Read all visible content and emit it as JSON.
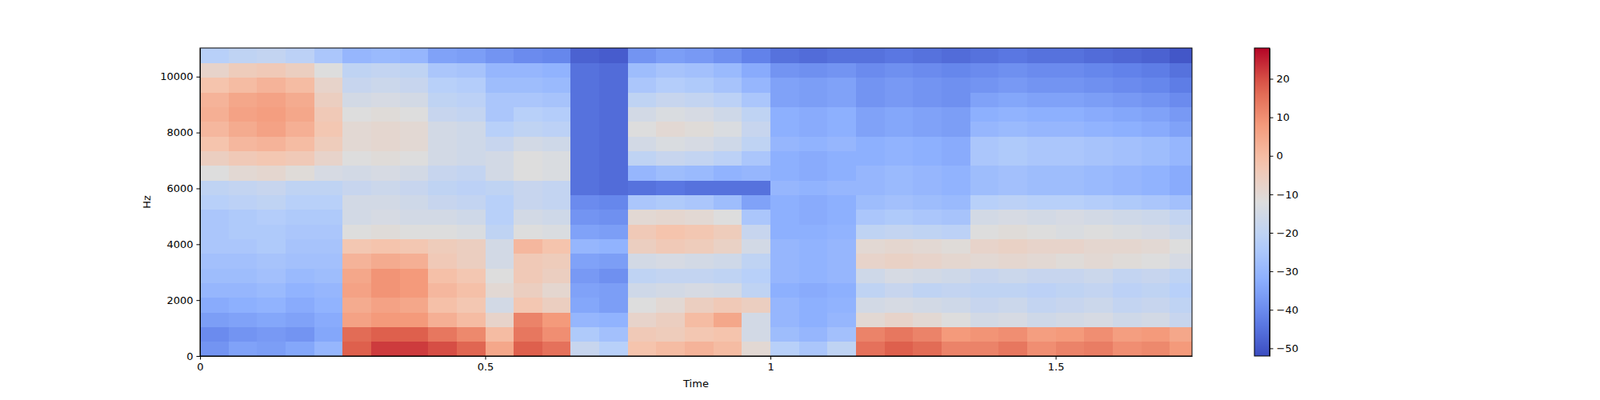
{
  "chart_data": {
    "type": "heatmap",
    "x_label": "Time",
    "y_label": "Hz",
    "x": [
      0,
      0.05,
      0.1,
      0.15,
      0.2,
      0.25,
      0.3,
      0.35,
      0.4,
      0.45,
      0.5,
      0.55,
      0.6,
      0.65,
      0.7,
      0.75,
      0.8,
      0.85,
      0.9,
      0.95,
      1.0,
      1.05,
      1.1,
      1.15,
      1.2,
      1.25,
      1.3,
      1.35,
      1.4,
      1.45,
      1.5,
      1.55,
      1.6,
      1.65,
      1.7,
      1.75
    ],
    "y": [
      0,
      525,
      1050,
      1575,
      2100,
      2625,
      3150,
      3675,
      4200,
      4725,
      5250,
      5775,
      6300,
      6825,
      7350,
      7875,
      8400,
      8925,
      9450,
      9975,
      10500,
      11025
    ],
    "xlim": [
      0,
      1.739
    ],
    "ylim": [
      0,
      11025
    ],
    "xticks": [
      0,
      0.5,
      1,
      1.5
    ],
    "yticks": [
      0,
      2000,
      4000,
      6000,
      8000,
      10000
    ],
    "zlim": [
      -52,
      28
    ],
    "zticks": [
      {
        "value": -50,
        "label": "−50"
      },
      {
        "value": -40,
        "label": "−40"
      },
      {
        "value": -30,
        "label": "−30"
      },
      {
        "value": -20,
        "label": "−20"
      },
      {
        "value": -10,
        "label": "−10"
      },
      0,
      10,
      20
    ],
    "values": [
      [
        -38,
        -35,
        -36,
        -34,
        -30,
        18,
        22,
        22,
        20,
        17,
        5,
        18,
        15,
        -18,
        -22,
        -2,
        0,
        2,
        0,
        -10,
        -22,
        -25,
        -20,
        15,
        18,
        16,
        12,
        12,
        14,
        10,
        12,
        13,
        10,
        11,
        8
      ],
      [
        -40,
        -38,
        -37,
        -38,
        -34,
        16,
        18,
        18,
        14,
        11,
        0,
        14,
        10,
        -24,
        -27,
        -4,
        -5,
        -3,
        -2,
        -15,
        -28,
        -30,
        -27,
        12,
        14,
        12,
        8,
        9,
        10,
        7,
        8,
        10,
        7,
        8,
        5
      ],
      [
        -36,
        -35,
        -34,
        -35,
        -33,
        6,
        8,
        8,
        3,
        0,
        -8,
        12,
        8,
        -30,
        -31,
        -8,
        -6,
        0,
        5,
        -15,
        -30,
        -32,
        -30,
        -10,
        -8,
        -10,
        -12,
        -15,
        -14,
        -16,
        -15,
        -14,
        -16,
        -15,
        -18
      ],
      [
        -33,
        -32,
        -31,
        -33,
        -31,
        4,
        6,
        5,
        -1,
        -3,
        -15,
        -3,
        -6,
        -34,
        -36,
        -12,
        -10,
        -6,
        -4,
        -6,
        -30,
        -32,
        -31,
        -15,
        -14,
        -15,
        -16,
        -18,
        -17,
        -19,
        -18,
        -17,
        -19,
        -18,
        -20
      ],
      [
        -30,
        -30,
        -29,
        -31,
        -30,
        6,
        9,
        8,
        1,
        -1,
        -10,
        -6,
        -9,
        -35,
        -36,
        -16,
        -15,
        -14,
        -15,
        -20,
        -32,
        -33,
        -32,
        -20,
        -18,
        -20,
        -19,
        -20,
        -20,
        -21,
        -20,
        -19,
        -21,
        -20,
        -22
      ],
      [
        -28,
        -28,
        -27,
        -29,
        -28,
        5,
        9,
        8,
        -1,
        -3,
        -12,
        -4,
        -6,
        -37,
        -39,
        -20,
        -19,
        -19,
        -20,
        -22,
        -30,
        -31,
        -30,
        -16,
        -14,
        -15,
        -16,
        -18,
        -17,
        -18,
        -18,
        -17,
        -19,
        -18,
        -20
      ],
      [
        -27,
        -27,
        -26,
        -27,
        -27,
        2,
        4,
        3,
        -4,
        -6,
        -15,
        -4,
        -5,
        -35,
        -36,
        -15,
        -14,
        -15,
        -16,
        -20,
        -30,
        -31,
        -30,
        -8,
        -7,
        -8,
        -9,
        -10,
        -9,
        -10,
        -11,
        -10,
        -11,
        -12,
        -14
      ],
      [
        -25,
        -25,
        -24,
        -26,
        -26,
        -3,
        -2,
        -3,
        -5,
        -6,
        -15,
        1,
        -2,
        -30,
        -31,
        -6,
        -4,
        -5,
        -7,
        -15,
        -30,
        -31,
        -30,
        -10,
        -9,
        -10,
        -11,
        -8,
        -7,
        -8,
        -8,
        -9,
        -9,
        -10,
        -12
      ],
      [
        -25,
        -24,
        -24,
        -25,
        -25,
        -12,
        -11,
        -12,
        -12,
        -13,
        -20,
        -12,
        -13,
        -35,
        -36,
        -4,
        -2,
        -3,
        -5,
        -18,
        -32,
        -32,
        -31,
        -20,
        -19,
        -20,
        -21,
        -12,
        -11,
        -12,
        -13,
        -12,
        -13,
        -14,
        -16
      ],
      [
        -25,
        -24,
        -23,
        -24,
        -24,
        -15,
        -14,
        -15,
        -15,
        -16,
        -22,
        -15,
        -16,
        -38,
        -39,
        -10,
        -9,
        -10,
        -12,
        -25,
        -32,
        -33,
        -32,
        -25,
        -24,
        -25,
        -26,
        -15,
        -14,
        -15,
        -14,
        -15,
        -16,
        -17,
        -19
      ],
      [
        -22,
        -21,
        -20,
        -22,
        -22,
        -15,
        -15,
        -16,
        -18,
        -19,
        -22,
        -18,
        -19,
        -40,
        -41,
        -25,
        -24,
        -25,
        -28,
        -35,
        -32,
        -33,
        -32,
        -28,
        -27,
        -28,
        -29,
        -22,
        -21,
        -22,
        -22,
        -23,
        -24,
        -25,
        -27
      ],
      [
        -20,
        -19,
        -18,
        -20,
        -20,
        -18,
        -17,
        -18,
        -20,
        -21,
        -20,
        -18,
        -19,
        -45,
        -46,
        -45,
        -44,
        -45,
        -45,
        -45,
        -30,
        -31,
        -30,
        -30,
        -29,
        -30,
        -31,
        -28,
        -27,
        -28,
        -28,
        -29,
        -30,
        -31,
        -33
      ],
      [
        -12,
        -10,
        -9,
        -11,
        -14,
        -15,
        -14,
        -15,
        -18,
        -19,
        -15,
        -12,
        -13,
        -45,
        -46,
        -30,
        -28,
        -29,
        -31,
        -30,
        -32,
        -33,
        -32,
        -30,
        -29,
        -30,
        -31,
        -28,
        -27,
        -28,
        -28,
        -29,
        -30,
        -31,
        -33
      ],
      [
        -6,
        -4,
        -3,
        -4,
        -8,
        -12,
        -11,
        -12,
        -15,
        -16,
        -15,
        -12,
        -13,
        -45,
        -46,
        -20,
        -18,
        -19,
        -21,
        -25,
        -32,
        -33,
        -32,
        -32,
        -31,
        -32,
        -33,
        -25,
        -24,
        -25,
        -25,
        -26,
        -27,
        -28,
        -30
      ],
      [
        -2,
        1,
        2,
        0,
        -5,
        -10,
        -9,
        -10,
        -15,
        -16,
        -18,
        -15,
        -16,
        -45,
        -46,
        -15,
        -13,
        -14,
        -16,
        -20,
        -30,
        -31,
        -30,
        -32,
        -31,
        -32,
        -33,
        -25,
        -24,
        -25,
        -25,
        -26,
        -27,
        -28,
        -30
      ],
      [
        1,
        4,
        6,
        3,
        -3,
        -10,
        -9,
        -10,
        -15,
        -16,
        -22,
        -20,
        -21,
        -45,
        -46,
        -12,
        -10,
        -11,
        -13,
        -18,
        -32,
        -33,
        -32,
        -35,
        -34,
        -35,
        -36,
        -30,
        -29,
        -30,
        -30,
        -31,
        -32,
        -33,
        -35
      ],
      [
        3,
        6,
        7,
        5,
        -4,
        -12,
        -11,
        -12,
        -18,
        -19,
        -25,
        -22,
        -23,
        -45,
        -46,
        -15,
        -13,
        -14,
        -16,
        -20,
        -32,
        -33,
        -32,
        -35,
        -34,
        -35,
        -36,
        -32,
        -31,
        -32,
        -32,
        -33,
        -34,
        -35,
        -37
      ],
      [
        2,
        5,
        6,
        4,
        -6,
        -15,
        -14,
        -15,
        -20,
        -21,
        -25,
        -25,
        -26,
        -45,
        -46,
        -20,
        -18,
        -19,
        -21,
        -25,
        -35,
        -36,
        -35,
        -38,
        -37,
        -38,
        -39,
        -35,
        -34,
        -35,
        -35,
        -36,
        -37,
        -38,
        -40
      ],
      [
        -2,
        0,
        2,
        0,
        -8,
        -18,
        -17,
        -18,
        -22,
        -23,
        -28,
        -28,
        -29,
        -45,
        -46,
        -25,
        -23,
        -24,
        -26,
        -30,
        -35,
        -36,
        -35,
        -38,
        -37,
        -38,
        -39,
        -38,
        -37,
        -38,
        -38,
        -39,
        -40,
        -41,
        -43
      ],
      [
        -8,
        -5,
        -4,
        -6,
        -12,
        -20,
        -19,
        -20,
        -25,
        -26,
        -30,
        -30,
        -31,
        -45,
        -46,
        -28,
        -26,
        -27,
        -29,
        -33,
        -38,
        -39,
        -38,
        -40,
        -39,
        -40,
        -41,
        -40,
        -39,
        -40,
        -40,
        -41,
        -42,
        -43,
        -45
      ],
      [
        -22,
        -20,
        -19,
        -21,
        -25,
        -30,
        -29,
        -30,
        -35,
        -36,
        -38,
        -40,
        -41,
        -48,
        -49,
        -38,
        -36,
        -37,
        -39,
        -42,
        -45,
        -46,
        -45,
        -45,
        -44,
        -45,
        -46,
        -45,
        -44,
        -45,
        -45,
        -46,
        -47,
        -48,
        -50
      ]
    ]
  }
}
